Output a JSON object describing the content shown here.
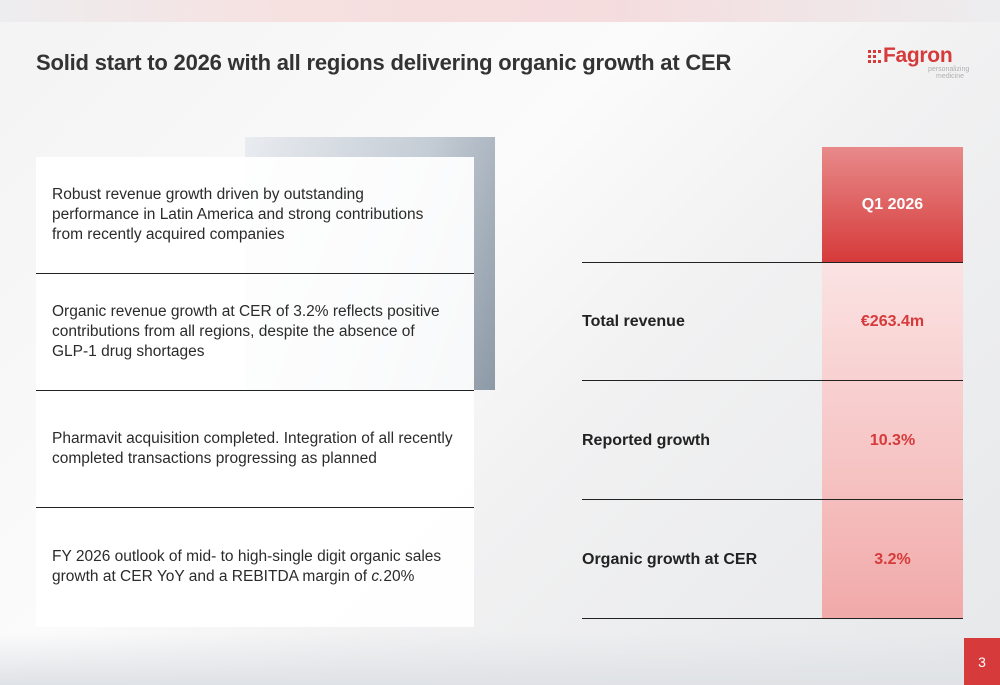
{
  "slide": {
    "title": "Solid start to 2026 with all regions delivering organic growth at CER",
    "page_number": "3"
  },
  "logo": {
    "wordmark": "Fagron",
    "tagline": "personalizing medicine",
    "brand_color": "#d63a3a"
  },
  "highlights": [
    {
      "text": "Robust revenue growth driven by outstanding performance in Latin America and strong contributions from recently acquired companies"
    },
    {
      "text": "Organic revenue growth at CER of 3.2% reflects positive contributions from all regions, despite the absence of GLP-1 drug shortages"
    },
    {
      "text": "Pharmavit acquisition completed. Integration of all recently completed transactions progressing as planned"
    },
    {
      "text": "FY 2026 outlook of mid- to high-single digit organic sales growth at CER YoY and a REBITDA margin of c.20%"
    }
  ],
  "kpi_table": {
    "column_header": "Q1 2026",
    "rows": [
      {
        "label": "Total revenue",
        "value": "€263.4m"
      },
      {
        "label": "Reported growth",
        "value": "10.3%"
      },
      {
        "label": "Organic growth at CER",
        "value": "3.2%"
      }
    ]
  }
}
